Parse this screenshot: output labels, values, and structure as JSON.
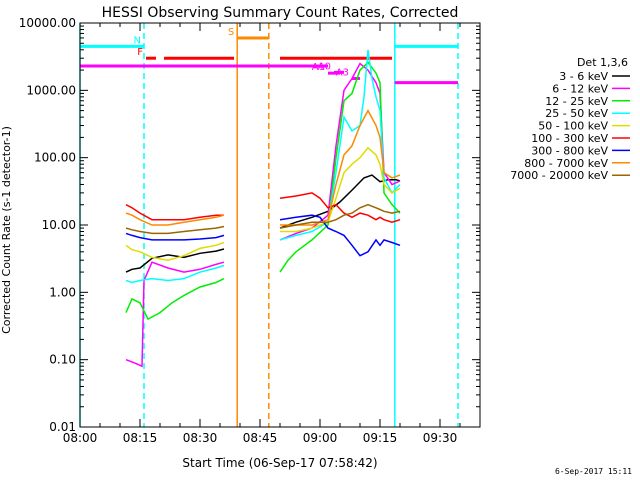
{
  "chart_data": {
    "type": "line",
    "title": "HESSI Observing Summary Count Rates, Corrected",
    "xlabel": "Start Time (06-Sep-17 07:58:42)",
    "ylabel": "Corrected Count Rate (s-1 detector-1)",
    "yscale": "log",
    "ylim": [
      0.01,
      10000
    ],
    "xlim_minutes": [
      0,
      100
    ],
    "x_ticks": [
      {
        "label": "08:00",
        "minute": 0
      },
      {
        "label": "08:15",
        "minute": 15
      },
      {
        "label": "08:30",
        "minute": 30
      },
      {
        "label": "08:45",
        "minute": 45
      },
      {
        "label": "09:00",
        "minute": 60
      },
      {
        "label": "09:15",
        "minute": 75
      },
      {
        "label": "09:30",
        "minute": 90
      }
    ],
    "y_ticks": [
      {
        "label": "0.01",
        "value": 0.01
      },
      {
        "label": "0.10",
        "value": 0.1
      },
      {
        "label": "1.00",
        "value": 1
      },
      {
        "label": "10.00",
        "value": 10
      },
      {
        "label": "100.00",
        "value": 100
      },
      {
        "label": "1000.00",
        "value": 1000
      },
      {
        "label": "10000.00",
        "value": 10000
      }
    ],
    "legend": {
      "title": "Det 1,3,6",
      "position": "right",
      "entries": [
        {
          "label": "3 - 6 keV",
          "color": "#000000"
        },
        {
          "label": "6 - 12 keV",
          "color": "#ff00ff"
        },
        {
          "label": "12 - 25 keV",
          "color": "#00ee00"
        },
        {
          "label": "25 - 50 keV",
          "color": "#00ffff"
        },
        {
          "label": "50 - 100 keV",
          "color": "#dddd00"
        },
        {
          "label": "100 - 300 keV",
          "color": "#ff0000"
        },
        {
          "label": "300 - 800 keV",
          "color": "#0000ff"
        },
        {
          "label": "800 - 7000 keV",
          "color": "#ff8800"
        },
        {
          "label": "7000 - 20000 keV",
          "color": "#996600"
        }
      ]
    },
    "series": [
      {
        "name": "3 - 6 keV",
        "color": "#000000",
        "segments": [
          [
            [
              11.5,
              2.0
            ],
            [
              13,
              2.2
            ],
            [
              15,
              2.3
            ],
            [
              18,
              3.2
            ],
            [
              22,
              3.6
            ],
            [
              26,
              3.3
            ],
            [
              30,
              3.8
            ],
            [
              34,
              4.1
            ],
            [
              36,
              4.4
            ]
          ],
          [
            [
              50,
              9.0
            ],
            [
              54,
              11
            ],
            [
              58,
              13
            ],
            [
              62,
              16
            ],
            [
              65,
              22
            ],
            [
              68,
              33
            ],
            [
              71,
              50
            ],
            [
              73,
              55
            ],
            [
              75,
              44
            ],
            [
              77,
              47
            ],
            [
              79,
              47
            ],
            [
              80,
              45
            ]
          ]
        ]
      },
      {
        "name": "6 - 12 keV",
        "color": "#ff00ff",
        "segments": [
          [
            [
              11.5,
              0.1
            ],
            [
              13.5,
              0.09
            ],
            [
              15.5,
              0.08
            ],
            [
              16,
              1.5
            ],
            [
              18,
              2.8
            ],
            [
              22,
              2.3
            ],
            [
              26,
              2.0
            ],
            [
              30,
              2.2
            ],
            [
              34,
              2.6
            ],
            [
              36,
              2.8
            ]
          ],
          [
            [
              50,
              6.0
            ],
            [
              54,
              7.5
            ],
            [
              58,
              9
            ],
            [
              62,
              14
            ],
            [
              64,
              150
            ],
            [
              66,
              1000
            ],
            [
              68,
              1500
            ],
            [
              70,
              2500
            ],
            [
              72,
              2000
            ],
            [
              74,
              1300
            ],
            [
              75,
              900
            ],
            [
              76,
              60
            ],
            [
              78,
              40
            ],
            [
              80,
              45
            ]
          ]
        ]
      },
      {
        "name": "12 - 25 keV",
        "color": "#00ee00",
        "segments": [
          [
            [
              11.5,
              0.5
            ],
            [
              13,
              0.8
            ],
            [
              15,
              0.7
            ],
            [
              17,
              0.4
            ],
            [
              20,
              0.5
            ],
            [
              23,
              0.7
            ],
            [
              26,
              0.9
            ],
            [
              30,
              1.2
            ],
            [
              34,
              1.4
            ],
            [
              36,
              1.6
            ]
          ],
          [
            [
              50,
              2.0
            ],
            [
              52,
              3.0
            ],
            [
              54,
              4.0
            ],
            [
              58,
              6
            ],
            [
              62,
              10
            ],
            [
              64,
              100
            ],
            [
              66,
              700
            ],
            [
              68,
              900
            ],
            [
              70,
              2000
            ],
            [
              72,
              2600
            ],
            [
              74,
              1800
            ],
            [
              75,
              1300
            ],
            [
              76,
              30
            ],
            [
              78,
              20
            ],
            [
              80,
              15
            ]
          ]
        ]
      },
      {
        "name": "25 - 50 keV",
        "color": "#00ffff",
        "segments": [
          [
            [
              11.5,
              1.5
            ],
            [
              13,
              1.4
            ],
            [
              15,
              1.5
            ],
            [
              18,
              1.6
            ],
            [
              22,
              1.5
            ],
            [
              26,
              1.6
            ],
            [
              30,
              2.0
            ],
            [
              34,
              2.3
            ],
            [
              36,
              2.5
            ]
          ],
          [
            [
              50,
              6.0
            ],
            [
              54,
              7
            ],
            [
              58,
              8
            ],
            [
              62,
              11
            ],
            [
              64,
              60
            ],
            [
              66,
              400
            ],
            [
              68,
              250
            ],
            [
              70,
              300
            ],
            [
              71,
              800
            ],
            [
              72,
              4000
            ],
            [
              73,
              1500
            ],
            [
              74,
              800
            ],
            [
              75,
              500
            ],
            [
              76,
              50
            ],
            [
              78,
              30
            ],
            [
              80,
              40
            ]
          ]
        ]
      },
      {
        "name": "50 - 100 keV",
        "color": "#dddd00",
        "segments": [
          [
            [
              11.5,
              5.0
            ],
            [
              13,
              4.3
            ],
            [
              15,
              4.0
            ],
            [
              18,
              3.3
            ],
            [
              22,
              3.0
            ],
            [
              26,
              3.5
            ],
            [
              30,
              4.5
            ],
            [
              34,
              5.0
            ],
            [
              36,
              5.5
            ]
          ],
          [
            [
              50,
              8.0
            ],
            [
              54,
              8
            ],
            [
              58,
              9
            ],
            [
              62,
              11
            ],
            [
              64,
              25
            ],
            [
              66,
              60
            ],
            [
              68,
              80
            ],
            [
              70,
              100
            ],
            [
              72,
              140
            ],
            [
              74,
              110
            ],
            [
              75,
              80
            ],
            [
              76,
              40
            ],
            [
              78,
              30
            ],
            [
              80,
              35
            ]
          ]
        ]
      },
      {
        "name": "100 - 300 keV",
        "color": "#ff0000",
        "segments": [
          [
            [
              11.5,
              20
            ],
            [
              13,
              18
            ],
            [
              15,
              15
            ],
            [
              18,
              12
            ],
            [
              22,
              12
            ],
            [
              26,
              12
            ],
            [
              30,
              13
            ],
            [
              34,
              14
            ],
            [
              36,
              14
            ]
          ],
          [
            [
              50,
              25
            ],
            [
              54,
              27
            ],
            [
              58,
              30
            ],
            [
              60,
              25
            ],
            [
              62,
              18
            ],
            [
              64,
              20
            ],
            [
              66,
              15
            ],
            [
              68,
              13
            ],
            [
              70,
              15
            ],
            [
              72,
              14
            ],
            [
              74,
              12
            ],
            [
              75,
              13
            ],
            [
              76,
              12
            ],
            [
              78,
              11
            ],
            [
              80,
              12
            ]
          ]
        ]
      },
      {
        "name": "300 - 800 keV",
        "color": "#0000ff",
        "segments": [
          [
            [
              11.5,
              7.5
            ],
            [
              13,
              7
            ],
            [
              15,
              6.5
            ],
            [
              18,
              6
            ],
            [
              22,
              6
            ],
            [
              26,
              6
            ],
            [
              30,
              6.2
            ],
            [
              34,
              6.5
            ],
            [
              36,
              7
            ]
          ],
          [
            [
              50,
              12
            ],
            [
              54,
              13
            ],
            [
              58,
              14
            ],
            [
              60,
              13
            ],
            [
              62,
              9
            ],
            [
              64,
              8
            ],
            [
              66,
              7
            ],
            [
              68,
              5
            ],
            [
              70,
              3.5
            ],
            [
              72,
              4
            ],
            [
              74,
              6
            ],
            [
              75,
              5
            ],
            [
              76,
              6
            ],
            [
              78,
              5.5
            ],
            [
              80,
              5
            ]
          ]
        ]
      },
      {
        "name": "800 - 7000 keV",
        "color": "#ff8800",
        "segments": [
          [
            [
              11.5,
              15
            ],
            [
              13,
              14
            ],
            [
              15,
              12
            ],
            [
              18,
              10
            ],
            [
              22,
              10
            ],
            [
              26,
              11
            ],
            [
              30,
              12
            ],
            [
              34,
              13
            ],
            [
              36,
              14
            ]
          ],
          [
            [
              50,
              10
            ],
            [
              54,
              10
            ],
            [
              58,
              10
            ],
            [
              62,
              12
            ],
            [
              64,
              40
            ],
            [
              66,
              110
            ],
            [
              68,
              150
            ],
            [
              70,
              300
            ],
            [
              72,
              500
            ],
            [
              74,
              300
            ],
            [
              75,
              200
            ],
            [
              76,
              60
            ],
            [
              78,
              50
            ],
            [
              80,
              55
            ]
          ]
        ]
      },
      {
        "name": "7000 - 20000 keV",
        "color": "#996600",
        "segments": [
          [
            [
              11.5,
              9
            ],
            [
              13,
              8.5
            ],
            [
              15,
              8
            ],
            [
              18,
              7.5
            ],
            [
              22,
              7.5
            ],
            [
              26,
              8
            ],
            [
              30,
              8.5
            ],
            [
              34,
              9
            ],
            [
              36,
              9.5
            ]
          ],
          [
            [
              50,
              9
            ],
            [
              54,
              10
            ],
            [
              58,
              11
            ],
            [
              62,
              11
            ],
            [
              64,
              12
            ],
            [
              66,
              14
            ],
            [
              68,
              15
            ],
            [
              70,
              18
            ],
            [
              72,
              20
            ],
            [
              74,
              18
            ],
            [
              75,
              17
            ],
            [
              76,
              16
            ],
            [
              78,
              15
            ],
            [
              80,
              16
            ]
          ]
        ]
      }
    ],
    "annotations": {
      "vertical_lines": [
        {
          "minute": 0,
          "color": "#00ffff",
          "style": "solid"
        },
        {
          "minute": 16,
          "color": "#00ffff",
          "style": "dashed"
        },
        {
          "minute": 39.3,
          "color": "#ff8800",
          "style": "solid"
        },
        {
          "minute": 47.2,
          "color": "#ff8800",
          "style": "dashed"
        },
        {
          "minute": 78.7,
          "color": "#00ffff",
          "style": "solid"
        },
        {
          "minute": 94.5,
          "color": "#00ffff",
          "style": "dashed"
        }
      ],
      "night_bars": [
        {
          "label": "",
          "from": -5,
          "to": 16,
          "y": 4500,
          "color": "#00ffff"
        },
        {
          "label": "",
          "from": 78.7,
          "to": 94.5,
          "y": 4500,
          "color": "#00ffff"
        }
      ],
      "flag_bars": [
        {
          "label": "N",
          "from": 16,
          "to": 16,
          "y": 4500,
          "color": "#00ffff"
        },
        {
          "label": "S",
          "from": 39.3,
          "to": 47.2,
          "y": 6000,
          "color": "#ff8800"
        },
        {
          "label": "F",
          "from": 16.5,
          "to": 19,
          "y": 3000,
          "color": "#ff0000"
        },
        {
          "label": "",
          "from": 21,
          "to": 38.5,
          "y": 3000,
          "color": "#ff0000"
        },
        {
          "label": "",
          "from": 50,
          "to": 78,
          "y": 3000,
          "color": "#ff0000"
        },
        {
          "label": "",
          "from": -5,
          "to": 62,
          "y": 2300,
          "color": "#ff00ff"
        },
        {
          "label": "",
          "from": 78.7,
          "to": 94.5,
          "y": 1300,
          "color": "#ff00ff"
        },
        {
          "label": "A0",
          "from": 63.5,
          "to": 66,
          "y": 1850,
          "color": "#ff00ff"
        },
        {
          "label": "A1",
          "from": 62,
          "to": 65,
          "y": 1800,
          "color": "#ff00ff"
        },
        {
          "label": "A3",
          "from": 68,
          "to": 70,
          "y": 1500,
          "color": "#ff00ff"
        }
      ]
    }
  },
  "stamp": "6-Sep-2017 15:11"
}
